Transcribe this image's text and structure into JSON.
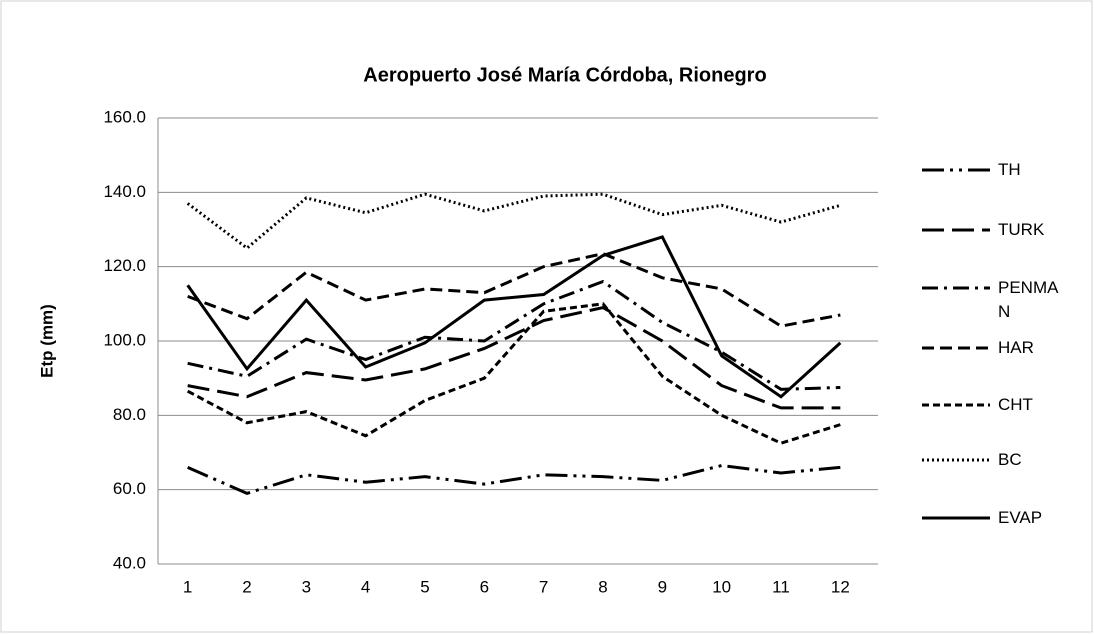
{
  "chart_data": {
    "type": "line",
    "title": "Aeropuerto José María Córdoba, Rionegro",
    "y_label": "Etp (mm)",
    "categories": [
      "1",
      "2",
      "3",
      "4",
      "5",
      "6",
      "7",
      "8",
      "9",
      "10",
      "11",
      "12"
    ],
    "ylim": [
      40,
      160
    ],
    "yticks": [
      {
        "value": 40,
        "label": "40.0"
      },
      {
        "value": 60,
        "label": "60.0"
      },
      {
        "value": 80,
        "label": "80.0"
      },
      {
        "value": 100,
        "label": "100.0"
      },
      {
        "value": 120,
        "label": "120.0"
      },
      {
        "value": 140,
        "label": "140.0"
      },
      {
        "value": 160,
        "label": "160.0"
      }
    ],
    "grid": true,
    "legend": "right",
    "series": [
      {
        "name": "TH",
        "color": "#000000",
        "values": [
          66,
          59,
          64,
          62,
          63.5,
          61.5,
          64,
          63.5,
          62.5,
          66.5,
          64.5,
          66
        ]
      },
      {
        "name": "TURK",
        "color": "#000000",
        "values": [
          88,
          85,
          91.5,
          89.5,
          92.5,
          98,
          105.5,
          109,
          100,
          88,
          82,
          82
        ]
      },
      {
        "name": "PENMAN",
        "color": "#000000",
        "values": [
          94,
          90.5,
          100.5,
          95,
          101,
          100,
          110,
          116,
          105,
          97,
          87,
          87.5
        ]
      },
      {
        "name": "HAR",
        "color": "#000000",
        "values": [
          112,
          106,
          118.5,
          111,
          114,
          113,
          120,
          123.5,
          117,
          114,
          104,
          107
        ]
      },
      {
        "name": "CHT",
        "color": "#000000",
        "values": [
          86.5,
          78,
          81,
          74.5,
          84,
          90,
          108,
          110,
          90.5,
          80,
          72.5,
          77.5
        ]
      },
      {
        "name": "BC",
        "color": "#000000",
        "values": [
          137,
          125,
          138.5,
          134.5,
          139.5,
          135,
          139,
          139.5,
          134,
          136.5,
          132,
          136.5
        ]
      },
      {
        "name": "EVAP",
        "color": "#000000",
        "values": [
          115,
          92.5,
          111,
          93,
          99.5,
          111,
          112.5,
          123,
          128,
          96,
          85,
          99.5
        ]
      }
    ]
  }
}
